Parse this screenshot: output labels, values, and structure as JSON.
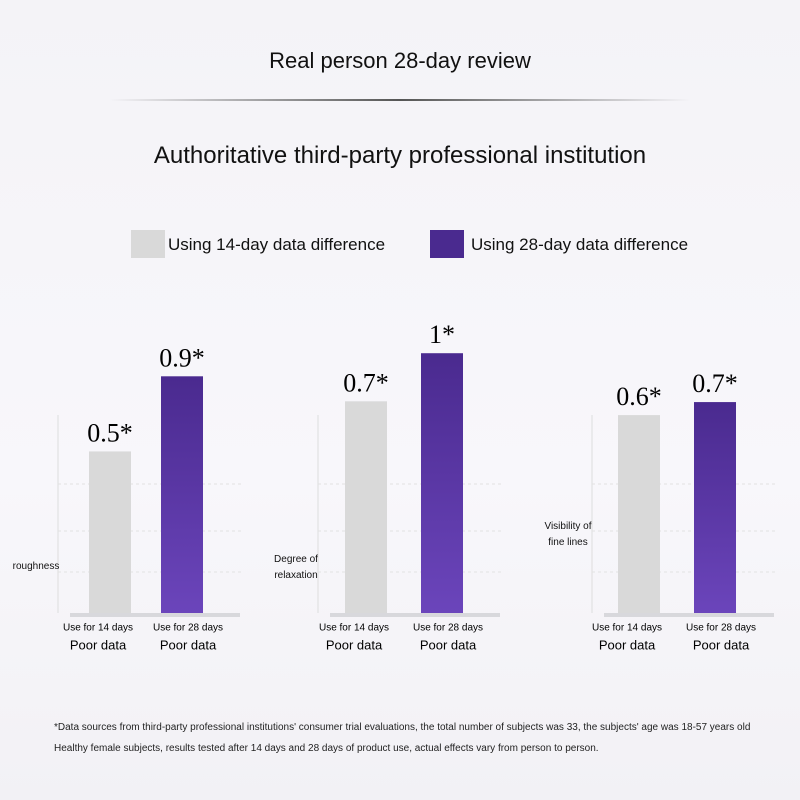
{
  "header": {
    "title": "Real person 28-day review",
    "subtitle": "Authoritative third-party professional institution"
  },
  "legend": [
    {
      "name": "Using 14-day data difference",
      "color": "#d9d9d9"
    },
    {
      "name": "Using 28-day data difference",
      "color": "#4a2a8f"
    }
  ],
  "chart_data": [
    {
      "type": "bar",
      "ylabel": "roughness",
      "categories": [
        "Use for 14 days",
        "Use for 28 days"
      ],
      "category_sublabels": [
        "Poor data",
        "Poor data"
      ],
      "values": [
        0.5,
        0.9
      ],
      "value_labels": [
        "0.5*",
        "0.9*"
      ],
      "ylim": [
        -0.36,
        1.04
      ]
    },
    {
      "type": "bar",
      "ylabel": "Degree of relaxation",
      "categories": [
        "Use for 14 days",
        "Use for 28 days"
      ],
      "category_sublabels": [
        "Poor data",
        "Poor data"
      ],
      "values": [
        0.7,
        1
      ],
      "value_labels": [
        "0.7*",
        "1*"
      ],
      "ylim": [
        -0.62,
        1.02
      ]
    },
    {
      "type": "bar",
      "ylabel": "Visibility of fine lines",
      "categories": [
        "Use for 14 days",
        "Use for 28 days"
      ],
      "category_sublabels": [
        "Poor data",
        "Poor data"
      ],
      "values": [
        0.6,
        0.7
      ],
      "value_labels": [
        "0.6*",
        "0.7*"
      ],
      "ylim": [
        -0.92,
        1.1
      ]
    }
  ],
  "footnote": [
    "*Data sources from third-party professional institutions' consumer trial evaluations, the total number of subjects was 33, the subjects' age was 18-57 years old",
    "Healthy female subjects, results tested after 14 days and 28 days of product use, actual effects vary from person to person."
  ]
}
